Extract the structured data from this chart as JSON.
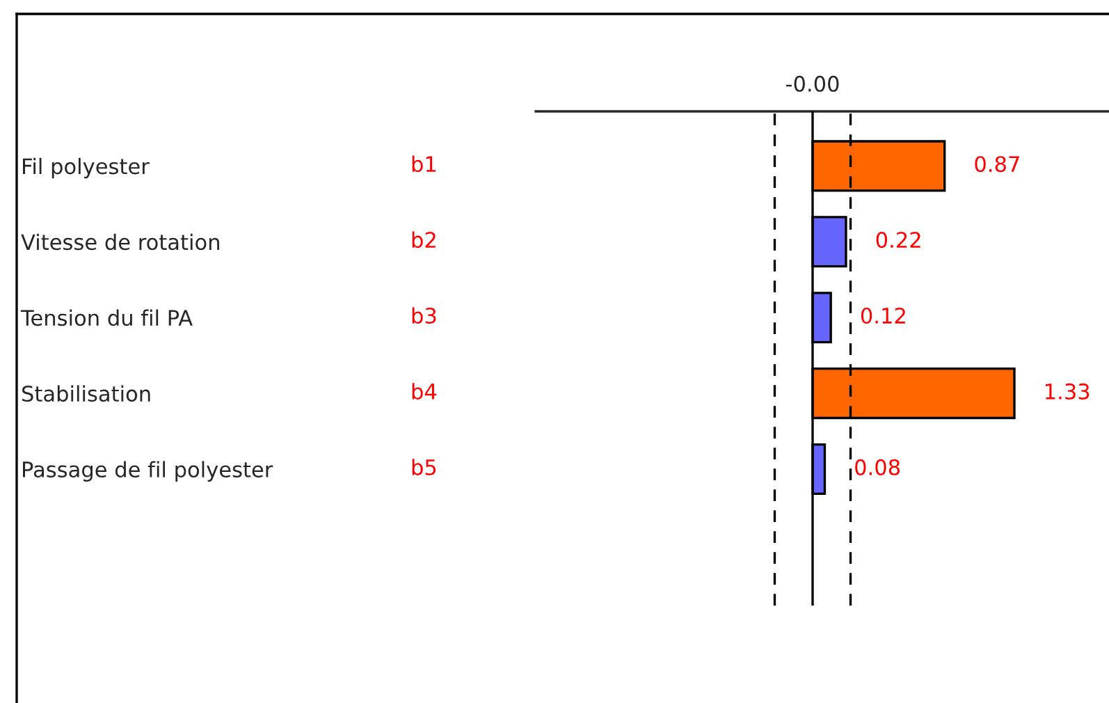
{
  "chart_data": {
    "type": "bar",
    "orientation": "horizontal",
    "categories": [
      "Fil polyester",
      "Vitesse de rotation",
      "Tension du fil PA",
      "Stabilisation",
      "Passage de fil polyester"
    ],
    "values": [
      0.87,
      0.22,
      0.12,
      1.33,
      0.08
    ],
    "colors": [
      "#ff6600",
      "#6666ff",
      "#6666ff",
      "#ff6600",
      "#6666ff"
    ],
    "data_labels": true,
    "ref_lines": [
      {
        "axis": "x",
        "value": 0,
        "line_style": "solid"
      },
      {
        "axis": "x",
        "value": -0.25,
        "line_style": "dashed"
      },
      {
        "axis": "x",
        "value": 0.25,
        "line_style": "dashed"
      }
    ],
    "annotations": [
      "-0.00",
      "b1",
      "b2",
      "b3",
      "b4",
      "b5"
    ],
    "grid": false
  }
}
